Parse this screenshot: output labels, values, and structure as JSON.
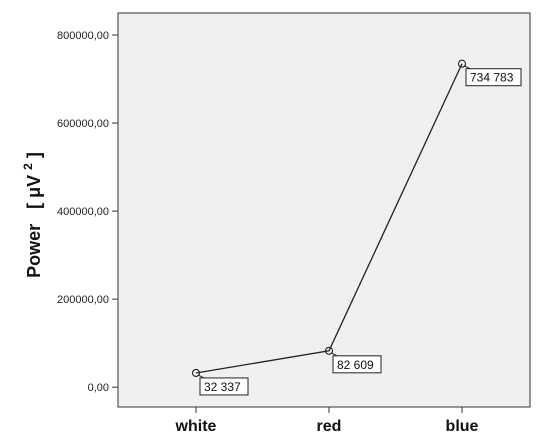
{
  "chart_data": {
    "type": "line",
    "categories": [
      "white",
      "red",
      "blue"
    ],
    "values": [
      32337,
      82609,
      734783
    ],
    "data_labels": [
      "32 337",
      "82 609",
      "734 783"
    ],
    "ylabel": "Power",
    "ylabel_unit_prefix": "[ μV",
    "ylabel_unit_sup": "2",
    "ylabel_unit_suffix": "]",
    "yticks": [
      0,
      200000,
      400000,
      600000,
      800000
    ],
    "ytick_labels": [
      "0,00",
      "200000,00",
      "400000,00",
      "600000,00",
      "800000,00"
    ],
    "ylim": [
      -45000,
      850000
    ],
    "grid": false,
    "colors": {
      "plot_bg": "#f0f0f0",
      "line": "#222222",
      "frame": "#333333"
    }
  }
}
